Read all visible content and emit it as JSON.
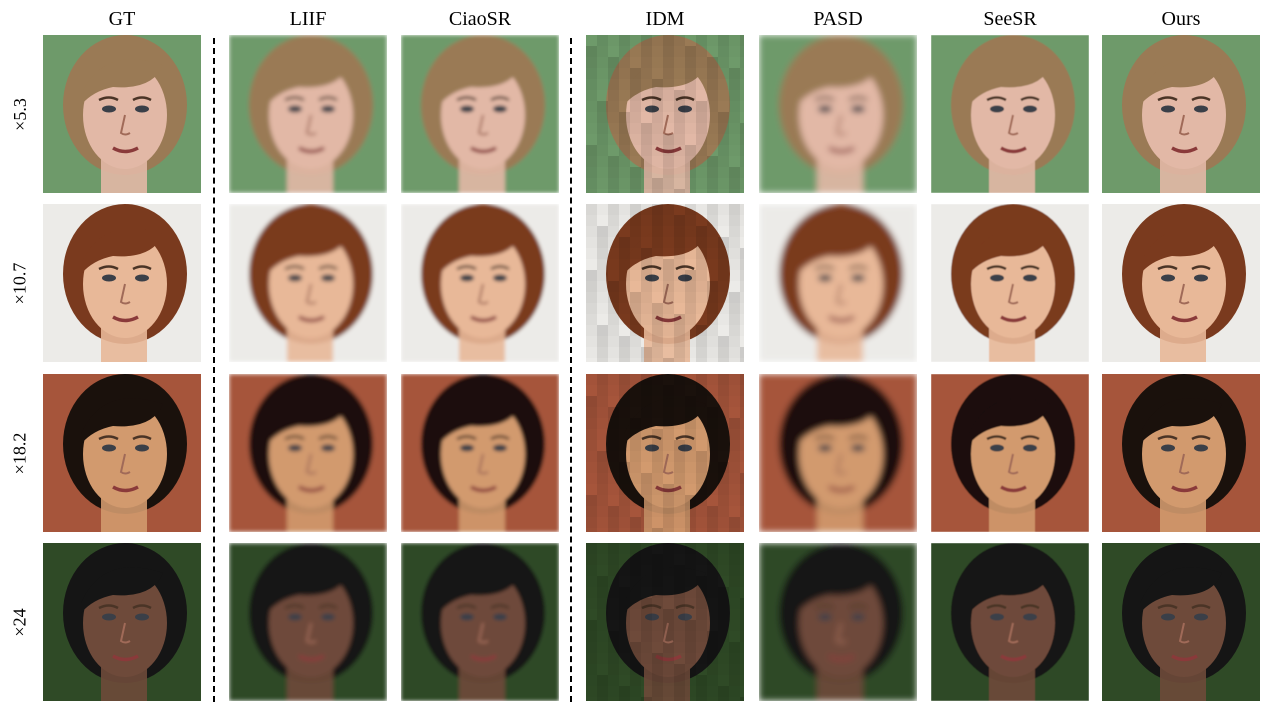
{
  "figure": {
    "columns": [
      {
        "label": "GT"
      },
      {
        "label": "LIIF"
      },
      {
        "label": "CiaoSR"
      },
      {
        "label": "IDM"
      },
      {
        "label": "PASD"
      },
      {
        "label": "SeeSR"
      },
      {
        "label": "Ours"
      }
    ],
    "rows": [
      {
        "scale": "×5.3",
        "bg": "#6e9a6a",
        "skin": "#e2b8a6",
        "hair": "#9a7a55"
      },
      {
        "scale": "×10.7",
        "bg": "#ecebe8",
        "skin": "#e8b898",
        "hair": "#7a3a1e"
      },
      {
        "scale": "×18.2",
        "bg": "#a6553b",
        "skin": "#d29a6e",
        "hair": "#1a110c"
      },
      {
        "scale": "×24",
        "bg": "#2f4a26",
        "skin": "#6e4a3a",
        "hair": "#151515"
      }
    ]
  }
}
